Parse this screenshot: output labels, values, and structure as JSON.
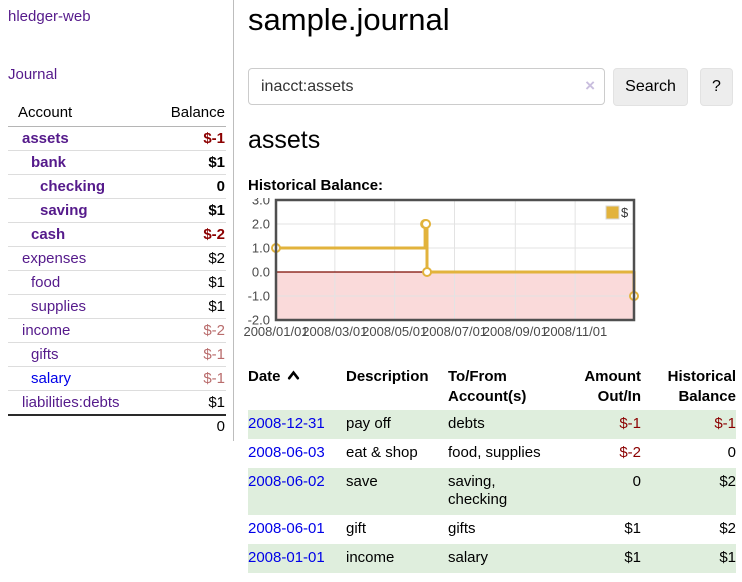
{
  "sidebar": {
    "app_title": "hledger-web",
    "journal_link": "Journal",
    "accounts_table": {
      "headers": {
        "account": "Account",
        "balance": "Balance"
      },
      "rows": [
        {
          "name": "assets",
          "balance": "$-1",
          "indent": 0,
          "emph": true,
          "name_style": "purple",
          "bal_style": "neg-strong"
        },
        {
          "name": "bank",
          "balance": "$1",
          "indent": 1,
          "emph": true,
          "name_style": "purple",
          "bal_style": "plain"
        },
        {
          "name": "checking",
          "balance": "0",
          "indent": 2,
          "emph": true,
          "name_style": "purple",
          "bal_style": "plain"
        },
        {
          "name": "saving",
          "balance": "$1",
          "indent": 2,
          "emph": true,
          "name_style": "purple",
          "bal_style": "plain"
        },
        {
          "name": "cash",
          "balance": "$-2",
          "indent": 1,
          "emph": true,
          "name_style": "purple",
          "bal_style": "neg-strong"
        },
        {
          "name": "expenses",
          "balance": "$2",
          "indent": 0,
          "emph": false,
          "name_style": "purple",
          "bal_style": "plain"
        },
        {
          "name": "food",
          "balance": "$1",
          "indent": 1,
          "emph": false,
          "name_style": "purple",
          "bal_style": "plain"
        },
        {
          "name": "supplies",
          "balance": "$1",
          "indent": 1,
          "emph": false,
          "name_style": "purple",
          "bal_style": "plain"
        },
        {
          "name": "income",
          "balance": "$-2",
          "indent": 0,
          "emph": false,
          "name_style": "purple",
          "bal_style": "neg-soft"
        },
        {
          "name": "gifts",
          "balance": "$-1",
          "indent": 1,
          "emph": false,
          "name_style": "purple",
          "bal_style": "neg-soft"
        },
        {
          "name": "salary",
          "balance": "$-1",
          "indent": 1,
          "emph": false,
          "name_style": "blue",
          "bal_style": "neg-soft"
        },
        {
          "name": "liabilities:debts",
          "balance": "$1",
          "indent": 0,
          "emph": false,
          "name_style": "purple",
          "bal_style": "plain"
        }
      ],
      "total": "0"
    }
  },
  "header": {
    "title": "sample.journal"
  },
  "search": {
    "value": "inacct:assets",
    "clear_icon": "×",
    "button_label": "Search",
    "help_label": "?"
  },
  "account_page": {
    "title": "assets",
    "chart_label": "Historical Balance:"
  },
  "chart_data": {
    "type": "line",
    "title": "Historical Balance",
    "step": true,
    "series": [
      {
        "name": "$",
        "points": [
          [
            "2008-01-01",
            1
          ],
          [
            "2008-06-01",
            2
          ],
          [
            "2008-06-02",
            2
          ],
          [
            "2008-06-03",
            0
          ],
          [
            "2008-12-31",
            -1
          ]
        ]
      }
    ],
    "x_range": [
      "2008-01-01",
      "2008-12-31"
    ],
    "y_range": [
      -2,
      3
    ],
    "y_ticks": [
      3,
      2,
      1,
      0,
      -1,
      -2
    ],
    "y_tick_labels": [
      "3.0",
      "2.0",
      "1.0",
      "0.0",
      "-1.0",
      "-2.0"
    ],
    "x_ticks": [
      "2008-01-01",
      "2008-03-01",
      "2008-05-01",
      "2008-07-01",
      "2008-09-01",
      "2008-11-01"
    ],
    "x_tick_labels": [
      "2008/01/01",
      "2008/03/01",
      "2008/05/01",
      "2008/07/01",
      "2008/09/01",
      "2008/11/01"
    ],
    "legend": {
      "label": "$",
      "position": "top-right"
    },
    "grid": true,
    "colors": {
      "line": "#e2b33c",
      "marker_fill": "#ffffff",
      "negative_region": "#fadada",
      "zero_line": "#7c0a02",
      "gridline": "#e3e3e3",
      "border": "#4f4f4f",
      "tick_text": "#4a4a4a"
    }
  },
  "register_table": {
    "headers": {
      "date": "Date",
      "sort_icon": "sort-ascending-caret",
      "description": "Description",
      "accounts": "To/From Account(s)",
      "amount": "Amount Out/In",
      "balance": "Historical Balance"
    },
    "rows": [
      {
        "date": "2008-12-31",
        "description": "pay off",
        "accounts": "debts",
        "amount": "$-1",
        "balance": "$-1",
        "amount_neg": true,
        "balance_neg": true
      },
      {
        "date": "2008-06-03",
        "description": "eat & shop",
        "accounts": "food, supplies",
        "amount": "$-2",
        "balance": "0",
        "amount_neg": true,
        "balance_neg": false
      },
      {
        "date": "2008-06-02",
        "description": "save",
        "accounts": "saving, checking",
        "amount": "0",
        "balance": "$2",
        "amount_neg": false,
        "balance_neg": false
      },
      {
        "date": "2008-06-01",
        "description": "gift",
        "accounts": "gifts",
        "amount": "$1",
        "balance": "$2",
        "amount_neg": false,
        "balance_neg": false
      },
      {
        "date": "2008-01-01",
        "description": "income",
        "accounts": "salary",
        "amount": "$1",
        "balance": "$1",
        "amount_neg": false,
        "balance_neg": false
      }
    ]
  },
  "colors": {
    "link_purple": "#551a8b",
    "link_blue": "#0000e8",
    "negative_strong": "#8b0000",
    "negative_soft": "#b96c6c",
    "row_stripe_green": "#dfeedd",
    "chart_gold": "#e2b33c",
    "chart_pink": "#fadada"
  }
}
